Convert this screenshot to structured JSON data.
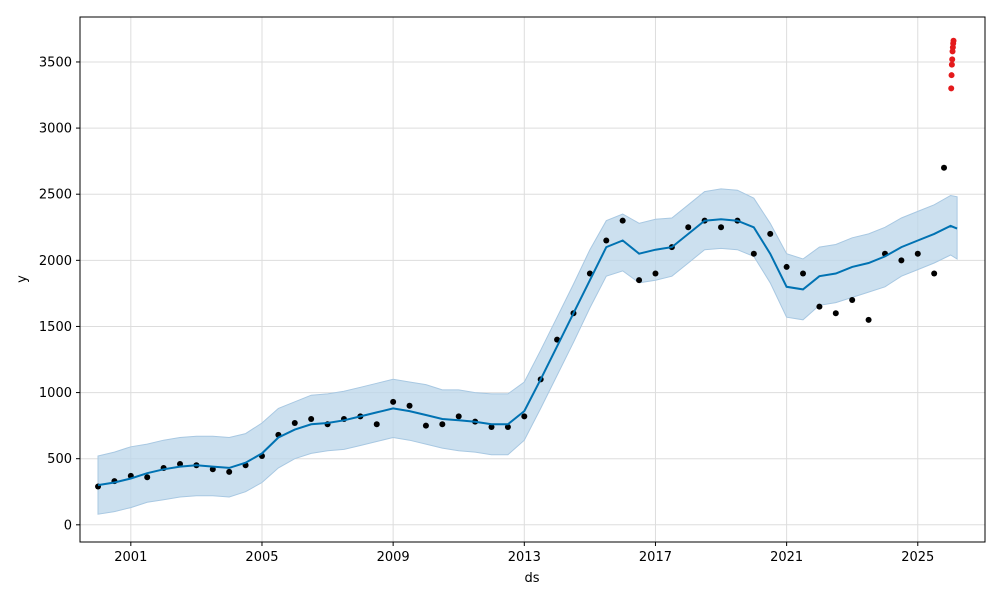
{
  "chart_data": {
    "type": "line",
    "title": "",
    "xlabel": "ds",
    "ylabel": "y",
    "xlim": [
      1999.45,
      2027.05
    ],
    "ylim": [
      -130,
      3840
    ],
    "grid": true,
    "x_ticks": [
      2001,
      2005,
      2009,
      2013,
      2017,
      2021,
      2025
    ],
    "x_tick_labels": [
      "2001",
      "2005",
      "2009",
      "2013",
      "2017",
      "2021",
      "2025"
    ],
    "y_ticks": [
      0,
      500,
      1000,
      1500,
      2000,
      2500,
      3000,
      3500
    ],
    "y_tick_labels": [
      "0",
      "500",
      "1000",
      "1500",
      "2000",
      "2500",
      "3000",
      "3500"
    ],
    "colors": {
      "forecast_line": "#0072B2",
      "uncertainty_band": "#BBD6EA",
      "uncertainty_edge": "#A8C8E2",
      "observed_points": "#000000",
      "outlier_points": "#E41A1C",
      "grid": "#DDDDDD"
    },
    "series": [
      {
        "role": "forecast",
        "x": [
          2000.0,
          2000.5,
          2001.0,
          2001.5,
          2002.0,
          2002.5,
          2003.0,
          2003.5,
          2004.0,
          2004.5,
          2005.0,
          2005.5,
          2006.0,
          2006.5,
          2007.0,
          2007.5,
          2008.0,
          2008.5,
          2009.0,
          2009.5,
          2010.0,
          2010.5,
          2011.0,
          2011.5,
          2012.0,
          2012.5,
          2013.0,
          2013.5,
          2014.0,
          2014.5,
          2015.0,
          2015.5,
          2016.0,
          2016.5,
          2017.0,
          2017.5,
          2018.0,
          2018.5,
          2019.0,
          2019.5,
          2020.0,
          2020.5,
          2021.0,
          2021.5,
          2022.0,
          2022.5,
          2023.0,
          2023.5,
          2024.0,
          2024.5,
          2025.0,
          2025.5,
          2026.0,
          2026.2
        ],
        "values": [
          300,
          320,
          350,
          390,
          420,
          440,
          450,
          440,
          430,
          470,
          540,
          660,
          720,
          760,
          770,
          790,
          820,
          850,
          880,
          860,
          830,
          800,
          790,
          780,
          760,
          760,
          860,
          1100,
          1350,
          1600,
          1850,
          2100,
          2150,
          2050,
          2080,
          2100,
          2200,
          2300,
          2310,
          2300,
          2250,
          2050,
          1800,
          1780,
          1880,
          1900,
          1950,
          1980,
          2030,
          2100,
          2150,
          2200,
          2260,
          2240
        ]
      },
      {
        "role": "uncertainty_upper",
        "x": [
          2000.0,
          2000.5,
          2001.0,
          2001.5,
          2002.0,
          2002.5,
          2003.0,
          2003.5,
          2004.0,
          2004.5,
          2005.0,
          2005.5,
          2006.0,
          2006.5,
          2007.0,
          2007.5,
          2008.0,
          2008.5,
          2009.0,
          2009.5,
          2010.0,
          2010.5,
          2011.0,
          2011.5,
          2012.0,
          2012.5,
          2013.0,
          2013.5,
          2014.0,
          2014.5,
          2015.0,
          2015.5,
          2016.0,
          2016.5,
          2017.0,
          2017.5,
          2018.0,
          2018.5,
          2019.0,
          2019.5,
          2020.0,
          2020.5,
          2021.0,
          2021.5,
          2022.0,
          2022.5,
          2023.0,
          2023.5,
          2024.0,
          2024.5,
          2025.0,
          2025.5,
          2026.0,
          2026.2
        ],
        "values": [
          520,
          550,
          590,
          610,
          640,
          660,
          670,
          670,
          660,
          690,
          770,
          880,
          930,
          980,
          990,
          1010,
          1040,
          1070,
          1100,
          1080,
          1060,
          1020,
          1020,
          1000,
          990,
          990,
          1080,
          1320,
          1570,
          1820,
          2080,
          2300,
          2350,
          2280,
          2310,
          2320,
          2420,
          2520,
          2540,
          2530,
          2470,
          2280,
          2050,
          2010,
          2100,
          2120,
          2170,
          2200,
          2250,
          2320,
          2370,
          2420,
          2490,
          2480
        ]
      },
      {
        "role": "uncertainty_lower",
        "x": [
          2000.0,
          2000.5,
          2001.0,
          2001.5,
          2002.0,
          2002.5,
          2003.0,
          2003.5,
          2004.0,
          2004.5,
          2005.0,
          2005.5,
          2006.0,
          2006.5,
          2007.0,
          2007.5,
          2008.0,
          2008.5,
          2009.0,
          2009.5,
          2010.0,
          2010.5,
          2011.0,
          2011.5,
          2012.0,
          2012.5,
          2013.0,
          2013.5,
          2014.0,
          2014.5,
          2015.0,
          2015.5,
          2016.0,
          2016.5,
          2017.0,
          2017.5,
          2018.0,
          2018.5,
          2019.0,
          2019.5,
          2020.0,
          2020.5,
          2021.0,
          2021.5,
          2022.0,
          2022.5,
          2023.0,
          2023.5,
          2024.0,
          2024.5,
          2025.0,
          2025.5,
          2026.0,
          2026.2
        ],
        "values": [
          80,
          100,
          130,
          170,
          190,
          210,
          220,
          220,
          210,
          250,
          320,
          430,
          500,
          540,
          560,
          570,
          600,
          630,
          660,
          640,
          610,
          580,
          560,
          550,
          530,
          530,
          640,
          880,
          1130,
          1380,
          1640,
          1880,
          1920,
          1830,
          1850,
          1880,
          1980,
          2080,
          2090,
          2080,
          2030,
          1830,
          1570,
          1550,
          1660,
          1680,
          1720,
          1760,
          1800,
          1880,
          1930,
          1980,
          2040,
          2010
        ]
      },
      {
        "role": "observed",
        "x": [
          2000.0,
          2000.5,
          2001.0,
          2001.5,
          2002.0,
          2002.5,
          2003.0,
          2003.5,
          2004.0,
          2004.5,
          2005.0,
          2005.5,
          2006.0,
          2006.5,
          2007.0,
          2007.5,
          2008.0,
          2008.5,
          2009.0,
          2009.5,
          2010.0,
          2010.5,
          2011.0,
          2011.5,
          2012.0,
          2012.5,
          2013.0,
          2013.5,
          2014.0,
          2014.5,
          2015.0,
          2015.5,
          2016.0,
          2016.5,
          2017.0,
          2017.5,
          2018.0,
          2018.5,
          2019.0,
          2019.5,
          2020.0,
          2020.5,
          2021.0,
          2021.5,
          2022.0,
          2022.5,
          2023.0,
          2023.5,
          2024.0,
          2024.5,
          2025.0,
          2025.5,
          2025.8
        ],
        "values": [
          290,
          330,
          370,
          360,
          430,
          460,
          450,
          420,
          400,
          450,
          520,
          680,
          770,
          800,
          760,
          800,
          820,
          760,
          930,
          900,
          750,
          760,
          820,
          780,
          740,
          740,
          820,
          1100,
          1400,
          1600,
          1900,
          2150,
          2300,
          1850,
          1900,
          2100,
          2250,
          2300,
          2250,
          2300,
          2050,
          2200,
          1950,
          1900,
          1650,
          1600,
          1700,
          1550,
          2050,
          2000,
          2050,
          1900,
          2700
        ]
      },
      {
        "role": "recent_outliers",
        "x": [
          2026.02,
          2026.03,
          2026.04,
          2026.05,
          2026.06,
          2026.07,
          2026.08,
          2026.09
        ],
        "values": [
          3300,
          3400,
          3480,
          3520,
          3580,
          3610,
          3640,
          3660
        ]
      }
    ]
  }
}
